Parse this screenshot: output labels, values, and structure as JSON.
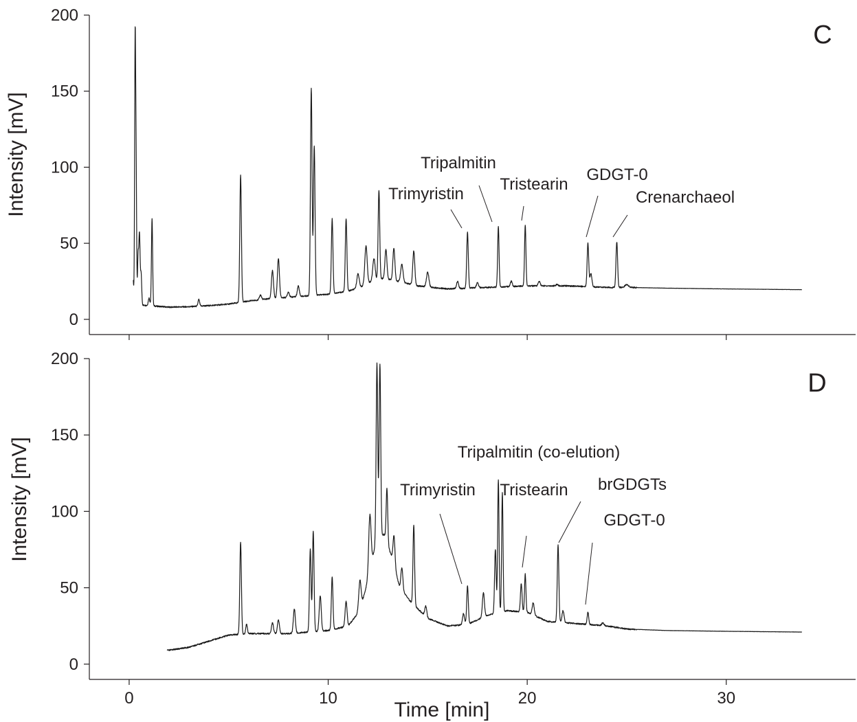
{
  "chart_data": [
    {
      "type": "line",
      "panel_label": "C",
      "xlabel": "",
      "ylabel": "Intensity [mV]",
      "xlim": [
        -2,
        36.5
      ],
      "ylim": [
        -10,
        200
      ],
      "x_ticks": [
        0,
        10,
        20,
        30
      ],
      "y_ticks": [
        0,
        50,
        100,
        150,
        200
      ],
      "show_x_tick_labels": false,
      "grid": false,
      "baseline": [
        [
          0.2,
          8
        ],
        [
          0.5,
          9.5
        ],
        [
          1,
          9
        ],
        [
          2,
          8
        ],
        [
          3,
          8.3
        ],
        [
          4,
          9
        ],
        [
          5,
          10
        ],
        [
          6,
          12
        ],
        [
          7,
          13.5
        ],
        [
          8,
          14.5
        ],
        [
          9,
          15.5
        ],
        [
          10,
          16.5
        ],
        [
          11,
          18.5
        ],
        [
          11.6,
          21
        ],
        [
          12.2,
          25
        ],
        [
          12.8,
          27
        ],
        [
          13.5,
          25
        ],
        [
          14.5,
          22
        ],
        [
          16,
          20
        ],
        [
          18,
          21
        ],
        [
          20,
          22
        ],
        [
          22,
          22
        ],
        [
          23,
          21.5
        ],
        [
          24,
          21
        ],
        [
          25,
          21
        ],
        [
          27,
          20.5
        ],
        [
          30,
          20
        ],
        [
          33.8,
          19.5
        ]
      ],
      "peaks": [
        [
          0.2,
          26,
          0.03
        ],
        [
          0.3,
          180,
          0.025
        ],
        [
          0.35,
          96,
          0.025
        ],
        [
          0.45,
          42,
          0.03
        ],
        [
          0.52,
          55,
          0.03
        ],
        [
          0.6,
          30,
          0.03
        ],
        [
          1.0,
          14,
          0.04
        ],
        [
          1.15,
          66,
          0.03
        ],
        [
          3.5,
          13,
          0.04
        ],
        [
          5.6,
          95,
          0.04
        ],
        [
          6.6,
          16,
          0.05
        ],
        [
          7.2,
          32,
          0.05
        ],
        [
          7.5,
          40,
          0.05
        ],
        [
          8.0,
          18,
          0.05
        ],
        [
          8.5,
          22,
          0.05
        ],
        [
          9.15,
          152,
          0.04
        ],
        [
          9.3,
          114,
          0.04
        ],
        [
          10.2,
          66,
          0.04
        ],
        [
          10.9,
          66,
          0.04
        ],
        [
          11.5,
          30,
          0.06
        ],
        [
          11.9,
          48,
          0.06
        ],
        [
          12.3,
          40,
          0.06
        ],
        [
          12.55,
          85,
          0.04
        ],
        [
          12.9,
          46,
          0.05
        ],
        [
          13.3,
          47,
          0.05
        ],
        [
          13.7,
          36,
          0.06
        ],
        [
          14.3,
          45,
          0.05
        ],
        [
          15.0,
          31,
          0.06
        ],
        [
          16.5,
          25,
          0.05
        ],
        [
          17.0,
          57,
          0.04
        ],
        [
          17.5,
          24,
          0.05
        ],
        [
          18.55,
          61,
          0.035
        ],
        [
          19.2,
          25,
          0.05
        ],
        [
          19.9,
          62,
          0.035
        ],
        [
          20.6,
          25,
          0.05
        ],
        [
          21.5,
          23,
          0.05
        ],
        [
          23.05,
          50,
          0.04
        ],
        [
          23.2,
          30,
          0.05
        ],
        [
          24.5,
          51,
          0.04
        ],
        [
          25.0,
          23,
          0.08
        ]
      ],
      "annotations": [
        {
          "label": "Trimyristin",
          "x": 17.0,
          "y": 57
        },
        {
          "label": "Tripalmitin",
          "x": 18.55,
          "y": 61
        },
        {
          "label": "Tristearin",
          "x": 19.9,
          "y": 62
        },
        {
          "label": "GDGT-0",
          "x": 23.05,
          "y": 50
        },
        {
          "label": "Crenarchaeol",
          "x": 24.5,
          "y": 51
        }
      ]
    },
    {
      "type": "line",
      "panel_label": "D",
      "xlabel": "Time [min]",
      "ylabel": "Intensity [mV]",
      "xlim": [
        -2,
        36.5
      ],
      "ylim": [
        -10,
        200
      ],
      "x_ticks": [
        0,
        10,
        20,
        30
      ],
      "y_ticks": [
        0,
        50,
        100,
        150,
        200
      ],
      "show_x_tick_labels": true,
      "grid": false,
      "baseline": [
        [
          1.9,
          9
        ],
        [
          3,
          11
        ],
        [
          4,
          15
        ],
        [
          5,
          19
        ],
        [
          6,
          20
        ],
        [
          7,
          20
        ],
        [
          8,
          20
        ],
        [
          9,
          21
        ],
        [
          10,
          22
        ],
        [
          11,
          25
        ],
        [
          11.6,
          35
        ],
        [
          12.0,
          55
        ],
        [
          12.4,
          80
        ],
        [
          12.8,
          85
        ],
        [
          13.2,
          70
        ],
        [
          13.6,
          50
        ],
        [
          14.2,
          40
        ],
        [
          15.0,
          30
        ],
        [
          16.0,
          25
        ],
        [
          17.0,
          26
        ],
        [
          18.0,
          32
        ],
        [
          19.0,
          35
        ],
        [
          20.0,
          34
        ],
        [
          21.0,
          28
        ],
        [
          22.0,
          27
        ],
        [
          23.0,
          26
        ],
        [
          24.0,
          25
        ],
        [
          25.0,
          23
        ],
        [
          27.0,
          22
        ],
        [
          30.0,
          21.5
        ],
        [
          33.8,
          21
        ]
      ],
      "peaks": [
        [
          3.5,
          13,
          0.05
        ],
        [
          5.6,
          80,
          0.04
        ],
        [
          5.9,
          26,
          0.04
        ],
        [
          7.2,
          27,
          0.05
        ],
        [
          7.5,
          29,
          0.05
        ],
        [
          8.3,
          36,
          0.05
        ],
        [
          9.1,
          75,
          0.04
        ],
        [
          9.25,
          87,
          0.04
        ],
        [
          9.6,
          45,
          0.05
        ],
        [
          10.2,
          57,
          0.04
        ],
        [
          10.9,
          41,
          0.05
        ],
        [
          11.6,
          55,
          0.06
        ],
        [
          12.1,
          98,
          0.06
        ],
        [
          12.45,
          197,
          0.04
        ],
        [
          12.6,
          196,
          0.04
        ],
        [
          12.95,
          115,
          0.04
        ],
        [
          13.3,
          84,
          0.05
        ],
        [
          13.7,
          63,
          0.05
        ],
        [
          14.3,
          91,
          0.04
        ],
        [
          14.9,
          38,
          0.05
        ],
        [
          16.8,
          33,
          0.05
        ],
        [
          17.0,
          51,
          0.04
        ],
        [
          17.8,
          47,
          0.05
        ],
        [
          18.4,
          75,
          0.04
        ],
        [
          18.55,
          121,
          0.035
        ],
        [
          18.75,
          112,
          0.035
        ],
        [
          19.7,
          53,
          0.04
        ],
        [
          19.9,
          59,
          0.035
        ],
        [
          20.3,
          40,
          0.05
        ],
        [
          21.55,
          78,
          0.04
        ],
        [
          21.8,
          35,
          0.05
        ],
        [
          23.05,
          34,
          0.04
        ],
        [
          23.8,
          27,
          0.06
        ]
      ],
      "annotations": [
        {
          "label": "Trimyristin",
          "x": 17.0,
          "y": 51
        },
        {
          "label": "Tripalmitin (co-elution)",
          "x": 18.55,
          "y": 121
        },
        {
          "label": "Tristearin",
          "x": 19.9,
          "y": 59
        },
        {
          "label": "brGDGTs",
          "x": 21.55,
          "y": 78
        },
        {
          "label": "GDGT-0",
          "x": 23.05,
          "y": 34
        }
      ]
    }
  ]
}
